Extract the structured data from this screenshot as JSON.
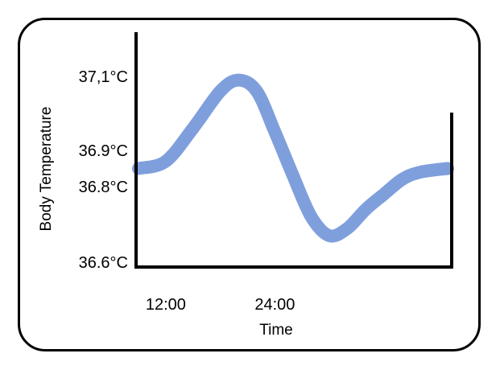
{
  "chart_data": {
    "type": "line",
    "xlabel": "Time",
    "ylabel": "Body Temperature",
    "x_ticks": [
      {
        "label": "12:00",
        "value": 3
      },
      {
        "label": "24:00",
        "value": 15
      }
    ],
    "y_ticks": [
      {
        "label": "37,1°C",
        "value": 37.1
      },
      {
        "label": "36.9°C",
        "value": 36.9
      },
      {
        "label": "36.8°C",
        "value": 36.8
      },
      {
        "label": "36.6°C",
        "value": 36.6
      }
    ],
    "xlim": [
      0,
      34
    ],
    "ylim": [
      36.6,
      37.1
    ],
    "series": [
      {
        "color": "#7f9fdc",
        "x": [
          0,
          3,
          6,
          9,
          11,
          13,
          15,
          17,
          19,
          21,
          23,
          25,
          27,
          29,
          31,
          34
        ],
        "y": [
          36.85,
          36.87,
          36.96,
          37.06,
          37.09,
          37.06,
          36.95,
          36.83,
          36.72,
          36.67,
          36.69,
          36.74,
          36.78,
          36.82,
          36.84,
          36.85
        ]
      }
    ],
    "grid": false,
    "legend": "none"
  }
}
